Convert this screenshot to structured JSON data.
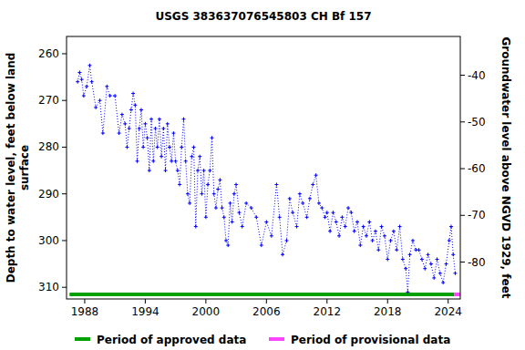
{
  "chart_data": {
    "type": "line",
    "title": "USGS 383637076545803 CH Bf 157",
    "ylabel": "Depth to water level, feet below land\nsurface",
    "y2label": "Groundwater level above NGVD 1929, feet",
    "xlim": [
      1986.2,
      2025.2
    ],
    "xticks": [
      1988,
      1994,
      2000,
      2006,
      2012,
      2018,
      2024
    ],
    "ylim": [
      312.5,
      256.3
    ],
    "yticks": [
      260,
      270,
      280,
      290,
      300,
      310
    ],
    "y2lim": [
      -87.9,
      -31.7
    ],
    "y2ticks": [
      -40,
      -50,
      -60,
      -70,
      -80
    ],
    "grid": false,
    "series": [
      {
        "color": "#0000ff",
        "marker": "plus",
        "line_style": "dotted",
        "x": [
          1987.3,
          1987.5,
          1987.7,
          1987.9,
          1988.2,
          1988.5,
          1988.7,
          1989.1,
          1989.5,
          1989.8,
          1990.2,
          1990.5,
          1991.0,
          1991.4,
          1991.7,
          1992.0,
          1992.2,
          1992.4,
          1992.6,
          1992.8,
          1993.0,
          1993.2,
          1993.4,
          1993.6,
          1993.8,
          1994.0,
          1994.2,
          1994.4,
          1994.6,
          1994.8,
          1995.0,
          1995.2,
          1995.4,
          1995.6,
          1995.8,
          1996.0,
          1996.2,
          1996.4,
          1996.6,
          1996.8,
          1997.0,
          1997.2,
          1997.4,
          1997.6,
          1997.8,
          1998.0,
          1998.2,
          1998.4,
          1998.6,
          1998.8,
          1999.0,
          1999.2,
          1999.4,
          1999.6,
          1999.8,
          2000.0,
          2000.2,
          2000.4,
          2000.6,
          2000.8,
          2001.0,
          2001.2,
          2001.4,
          2001.6,
          2001.8,
          2002.0,
          2002.2,
          2002.4,
          2002.6,
          2002.8,
          2003.0,
          2003.3,
          2003.6,
          2004.0,
          2004.5,
          2005.0,
          2005.5,
          2006.0,
          2006.5,
          2007.0,
          2007.3,
          2007.6,
          2008.0,
          2008.3,
          2008.6,
          2009.0,
          2009.3,
          2009.6,
          2010.0,
          2010.3,
          2010.6,
          2010.9,
          2011.2,
          2011.5,
          2011.8,
          2012.0,
          2012.3,
          2012.6,
          2012.9,
          2013.2,
          2013.5,
          2013.8,
          2014.1,
          2014.4,
          2014.7,
          2015.0,
          2015.3,
          2015.6,
          2015.9,
          2016.2,
          2016.5,
          2016.8,
          2017.1,
          2017.4,
          2017.7,
          2018.0,
          2018.3,
          2018.6,
          2018.9,
          2019.2,
          2019.5,
          2019.8,
          2020.0,
          2020.2,
          2020.5,
          2020.8,
          2021.1,
          2021.4,
          2021.7,
          2022.0,
          2022.3,
          2022.6,
          2022.9,
          2023.2,
          2023.5,
          2023.8,
          2024.1,
          2024.3,
          2024.5,
          2024.7
        ],
        "values": [
          266,
          264,
          265.5,
          269,
          267,
          262.5,
          266,
          271.5,
          270,
          277,
          267,
          269,
          269,
          277,
          273,
          275,
          280,
          276,
          272,
          268.5,
          271,
          283,
          276,
          272,
          280,
          275,
          278,
          285,
          274,
          283,
          276,
          280,
          274,
          282,
          276,
          285,
          275,
          280,
          283,
          277,
          283,
          285,
          288,
          280,
          274,
          283,
          290,
          292,
          282,
          280,
          297,
          285,
          282,
          290,
          285,
          295,
          288,
          285,
          278,
          290,
          293,
          289,
          287,
          293,
          295,
          300,
          301,
          292,
          296,
          290,
          288,
          294,
          297,
          292,
          293,
          295,
          301,
          296,
          299,
          288,
          295,
          303,
          300,
          291,
          294,
          297,
          290,
          292,
          295,
          291,
          288,
          286,
          292,
          293,
          295,
          294,
          298,
          294,
          296,
          299,
          295,
          297,
          293,
          294,
          298,
          296,
          301,
          297,
          299,
          296,
          300,
          298,
          302,
          297,
          299,
          304,
          300,
          298,
          302,
          297,
          304,
          306,
          311,
          303,
          300,
          302,
          302,
          304,
          306,
          303,
          305,
          308,
          304,
          307,
          309,
          305,
          300,
          297,
          303,
          307
        ]
      }
    ],
    "periods": [
      {
        "name": "Period of approved data",
        "color": "#00a000",
        "start": 1986.5,
        "end": 2024.6
      },
      {
        "name": "Period of provisional data",
        "color": "#ff44ff",
        "start": 2024.6,
        "end": 2025.2
      }
    ]
  }
}
